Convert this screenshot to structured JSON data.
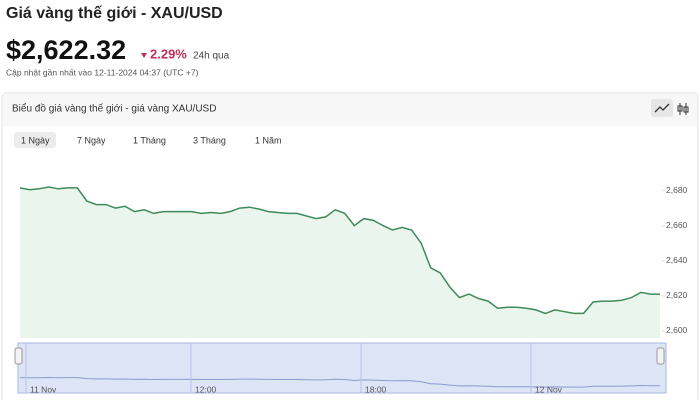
{
  "header": {
    "title": "Giá vàng thế giới - XAU/USD",
    "price": "$2,622.32",
    "change": "2.29%",
    "change_period": "24h qua",
    "updated": "Cập nhật gần nhất vào 12-11-2024 04:37 (UTC +7)"
  },
  "panel": {
    "title": "Biểu đồ giá vàng thế giới - giá vàng XAU/USD",
    "tabs": [
      "1 Ngày",
      "7 Ngày",
      "1 Tháng",
      "3 Tháng",
      "1 Năm"
    ],
    "active_tab": 0
  },
  "chart_data": {
    "type": "line",
    "color": "#3f8a5c",
    "fill": "#eaf5ee",
    "values": [
      2681.5,
      2680.5,
      2681,
      2682,
      2681,
      2681.5,
      2681.5,
      2674,
      2672,
      2672,
      2670,
      2671,
      2668,
      2669,
      2667,
      2668,
      2668,
      2668,
      2668,
      2667,
      2667.5,
      2667,
      2668,
      2670,
      2670.5,
      2669.5,
      2668,
      2667.5,
      2667,
      2667,
      2665.5,
      2664,
      2665,
      2669,
      2667,
      2660,
      2664,
      2663,
      2660,
      2657.5,
      2659,
      2657.5,
      2650,
      2636,
      2633,
      2625,
      2619,
      2621,
      2618.5,
      2617,
      2613,
      2613.5,
      2613.5,
      2613,
      2612,
      2610,
      2612,
      2611,
      2610,
      2610,
      2616.5,
      2617,
      2617,
      2617.5,
      2619,
      2622,
      2621,
      2621
    ],
    "ylim": [
      2596,
      2686
    ],
    "yticks": [
      {
        "value": 2600,
        "label": "2,600"
      },
      {
        "value": 2620,
        "label": "2,620"
      },
      {
        "value": 2640,
        "label": "2,640"
      },
      {
        "value": 2660,
        "label": "2,660"
      },
      {
        "value": 2680,
        "label": "2,680"
      }
    ],
    "navigator_labels": [
      "11 Nov",
      "12:00",
      "18:00",
      "12 Nov"
    ]
  }
}
